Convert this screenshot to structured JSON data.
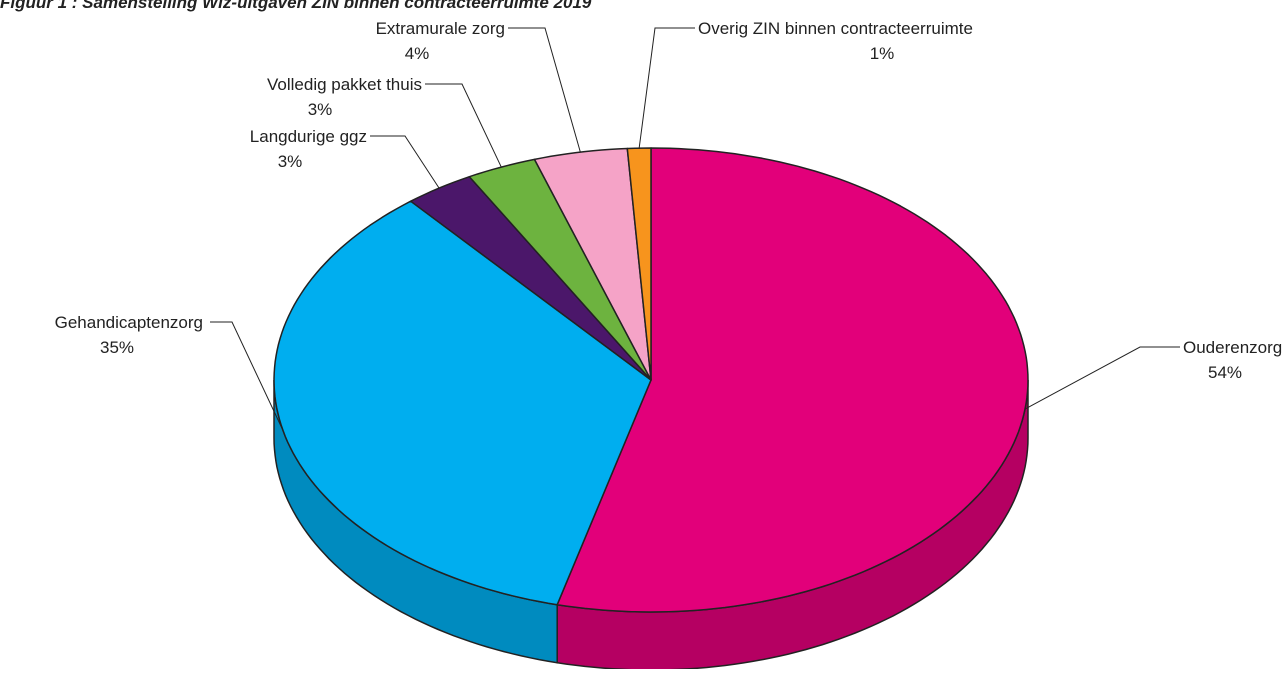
{
  "chart_data": {
    "type": "pie3d",
    "title": "Figuur 1 : Samenstelling Wlz-uitgaven ZIN binnen contracteerruimte 2019",
    "categories": [
      "Ouderenzorg",
      "Gehandicaptenzorg",
      "Langdurige ggz",
      "Volledig pakket thuis",
      "Extramurale zorg",
      "Overig ZIN binnen contracteerruimte"
    ],
    "values": [
      54,
      35,
      3,
      3,
      4,
      1
    ],
    "value_labels": [
      "54%",
      "35%",
      "3%",
      "3%",
      "4%",
      "1%"
    ],
    "colors": [
      "#e2007a",
      "#00aeef",
      "#4b176a",
      "#6db33f",
      "#f5a3c7",
      "#f7941d"
    ]
  }
}
